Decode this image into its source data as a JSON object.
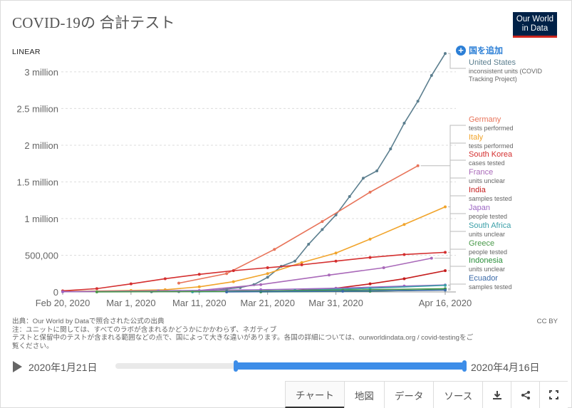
{
  "header": {
    "title": "COVID-19の 合計テスト",
    "logo_line1": "Our World",
    "logo_line2": "in Data",
    "scale_label": "LINEAR",
    "add_country": "国を追加"
  },
  "chart_data": {
    "type": "line",
    "title": "COVID-19の 合計テスト",
    "xlabel": "",
    "ylabel": "",
    "x_ticks": [
      "Feb 20, 2020",
      "Mar 1, 2020",
      "Mar 11, 2020",
      "Mar 21, 2020",
      "Mar 31, 2020",
      "Apr 16, 2020"
    ],
    "y_ticks": [
      "0",
      "500,000",
      "1 million",
      "1.5 million",
      "2 million",
      "2.5 million",
      "3 million"
    ],
    "ylim": [
      0,
      3300000
    ],
    "xlim": [
      "2020-02-20",
      "2020-04-16"
    ],
    "grid": true,
    "series": [
      {
        "name": "United States",
        "note": "inconsistent units (COVID Tracking Project)",
        "color": "#5c7f8f",
        "points": [
          [
            "2020-03-04",
            2000
          ],
          [
            "2020-03-08",
            5000
          ],
          [
            "2020-03-11",
            10000
          ],
          [
            "2020-03-13",
            20000
          ],
          [
            "2020-03-15",
            40000
          ],
          [
            "2020-03-17",
            60000
          ],
          [
            "2020-03-19",
            100000
          ],
          [
            "2020-03-21",
            200000
          ],
          [
            "2020-03-23",
            350000
          ],
          [
            "2020-03-25",
            420000
          ],
          [
            "2020-03-27",
            650000
          ],
          [
            "2020-03-29",
            850000
          ],
          [
            "2020-03-31",
            1050000
          ],
          [
            "2020-04-02",
            1300000
          ],
          [
            "2020-04-04",
            1550000
          ],
          [
            "2020-04-06",
            1650000
          ],
          [
            "2020-04-08",
            1950000
          ],
          [
            "2020-04-10",
            2300000
          ],
          [
            "2020-04-12",
            2600000
          ],
          [
            "2020-04-14",
            2950000
          ],
          [
            "2020-04-16",
            3250000
          ]
        ]
      },
      {
        "name": "Germany",
        "note": "tests performed",
        "color": "#e8745a",
        "points": [
          [
            "2020-03-08",
            120000
          ],
          [
            "2020-03-15",
            250000
          ],
          [
            "2020-03-22",
            580000
          ],
          [
            "2020-03-29",
            960000
          ],
          [
            "2020-04-05",
            1360000
          ],
          [
            "2020-04-12",
            1720000
          ]
        ]
      },
      {
        "name": "Italy",
        "note": "tests performed",
        "color": "#f1a42b",
        "points": [
          [
            "2020-02-20",
            5000
          ],
          [
            "2020-03-01",
            20000
          ],
          [
            "2020-03-06",
            30000
          ],
          [
            "2020-03-11",
            70000
          ],
          [
            "2020-03-16",
            140000
          ],
          [
            "2020-03-21",
            250000
          ],
          [
            "2020-03-26",
            400000
          ],
          [
            "2020-03-31",
            530000
          ],
          [
            "2020-04-05",
            720000
          ],
          [
            "2020-04-10",
            920000
          ],
          [
            "2020-04-16",
            1160000
          ]
        ]
      },
      {
        "name": "South Korea",
        "note": "cases tested",
        "color": "#d42f2f",
        "points": [
          [
            "2020-02-20",
            15000
          ],
          [
            "2020-02-25",
            45000
          ],
          [
            "2020-03-01",
            110000
          ],
          [
            "2020-03-06",
            180000
          ],
          [
            "2020-03-11",
            240000
          ],
          [
            "2020-03-16",
            290000
          ],
          [
            "2020-03-21",
            330000
          ],
          [
            "2020-03-26",
            370000
          ],
          [
            "2020-03-31",
            420000
          ],
          [
            "2020-04-05",
            470000
          ],
          [
            "2020-04-10",
            510000
          ],
          [
            "2020-04-16",
            540000
          ]
        ]
      },
      {
        "name": "France",
        "note": "units unclear",
        "color": "#a969b9",
        "points": [
          [
            "2020-03-11",
            20000
          ],
          [
            "2020-03-20",
            100000
          ],
          [
            "2020-03-30",
            230000
          ],
          [
            "2020-04-07",
            330000
          ],
          [
            "2020-04-14",
            460000
          ]
        ]
      },
      {
        "name": "India",
        "note": "samples tested",
        "color": "#c51d1d",
        "points": [
          [
            "2020-03-15",
            5000
          ],
          [
            "2020-03-25",
            20000
          ],
          [
            "2020-03-31",
            50000
          ],
          [
            "2020-04-05",
            110000
          ],
          [
            "2020-04-10",
            180000
          ],
          [
            "2020-04-16",
            290000
          ]
        ]
      },
      {
        "name": "Japan",
        "note": "people tested",
        "color": "#9d67c4",
        "points": [
          [
            "2020-02-20",
            3000
          ],
          [
            "2020-03-05",
            15000
          ],
          [
            "2020-03-20",
            30000
          ],
          [
            "2020-03-31",
            50000
          ],
          [
            "2020-04-10",
            80000
          ],
          [
            "2020-04-16",
            95000
          ]
        ]
      },
      {
        "name": "South Africa",
        "note": "units unclear",
        "color": "#3a9fa8",
        "points": [
          [
            "2020-03-10",
            1000
          ],
          [
            "2020-03-25",
            20000
          ],
          [
            "2020-04-05",
            50000
          ],
          [
            "2020-04-16",
            90000
          ]
        ]
      },
      {
        "name": "Greece",
        "note": "people tested",
        "color": "#4a9a4a",
        "points": [
          [
            "2020-02-25",
            500
          ],
          [
            "2020-03-15",
            8000
          ],
          [
            "2020-04-01",
            25000
          ],
          [
            "2020-04-16",
            45000
          ]
        ]
      },
      {
        "name": "Indonesia",
        "note": "units unclear",
        "color": "#2a8f3a",
        "points": [
          [
            "2020-03-20",
            1000
          ],
          [
            "2020-04-05",
            10000
          ],
          [
            "2020-04-16",
            30000
          ]
        ]
      },
      {
        "name": "Ecuador",
        "note": "samples tested",
        "color": "#3b6aa8",
        "points": [
          [
            "2020-03-15",
            500
          ],
          [
            "2020-04-01",
            10000
          ],
          [
            "2020-04-16",
            25000
          ]
        ]
      }
    ]
  },
  "footer": {
    "source_line1": "出典：Our World by Dataで照合された公式の出典",
    "source_line2": "注：ユニットに関しては、すべてのラボが含まれるかどうかにかかわらず、ネガティブ",
    "source_line3": "テストと保留中のテストが含まれる範囲などの点で、国によって大きな違いがあります。各国の詳細については、ourworldindata.org / covid-testingをご",
    "source_line4": "覧ください。",
    "license": "CC BY"
  },
  "timeline": {
    "start_date": "2020年1月21日",
    "end_date": "2020年4月16日",
    "range_start_fraction": 0.345,
    "range_end_fraction": 1.0
  },
  "tabs": [
    {
      "label": "チャート",
      "active": true
    },
    {
      "label": "地図",
      "active": false
    },
    {
      "label": "データ",
      "active": false
    },
    {
      "label": "ソース",
      "active": false
    }
  ],
  "icons": [
    "download-icon",
    "share-icon",
    "fullscreen-icon"
  ]
}
